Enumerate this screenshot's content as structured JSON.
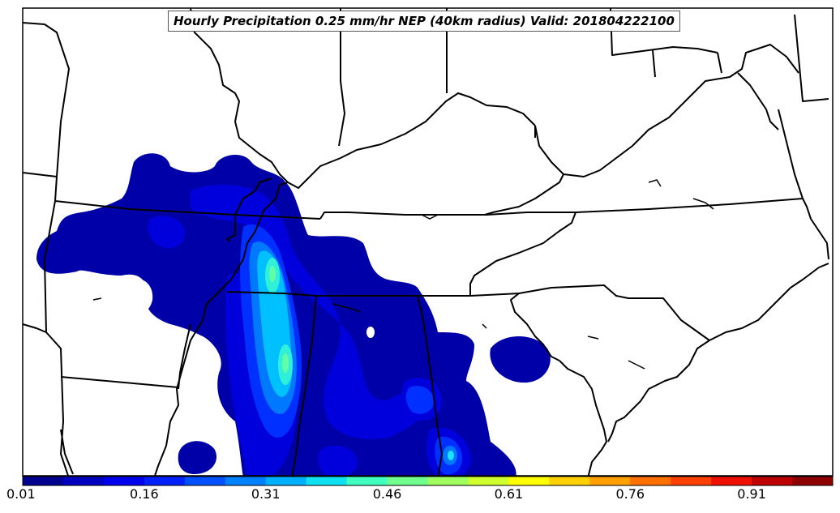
{
  "title": "Hourly Precipitation 0.25 mm/hr NEP (40km radius) Valid: 201804222100",
  "colorbar": {
    "colors": [
      "#00008f",
      "#0000bf",
      "#0000ef",
      "#0020ff",
      "#0050ff",
      "#0080ff",
      "#00b0ff",
      "#10e0ef",
      "#40ffbf",
      "#70ff8f",
      "#a0ff60",
      "#d0ff30",
      "#ffff00",
      "#ffd000",
      "#ffa000",
      "#ff7000",
      "#ff4000",
      "#ef1000",
      "#bf0000",
      "#8f0000"
    ],
    "tick_labels": [
      "0.01",
      "0.16",
      "0.31",
      "0.46",
      "0.61",
      "0.76",
      "0.91"
    ]
  }
}
